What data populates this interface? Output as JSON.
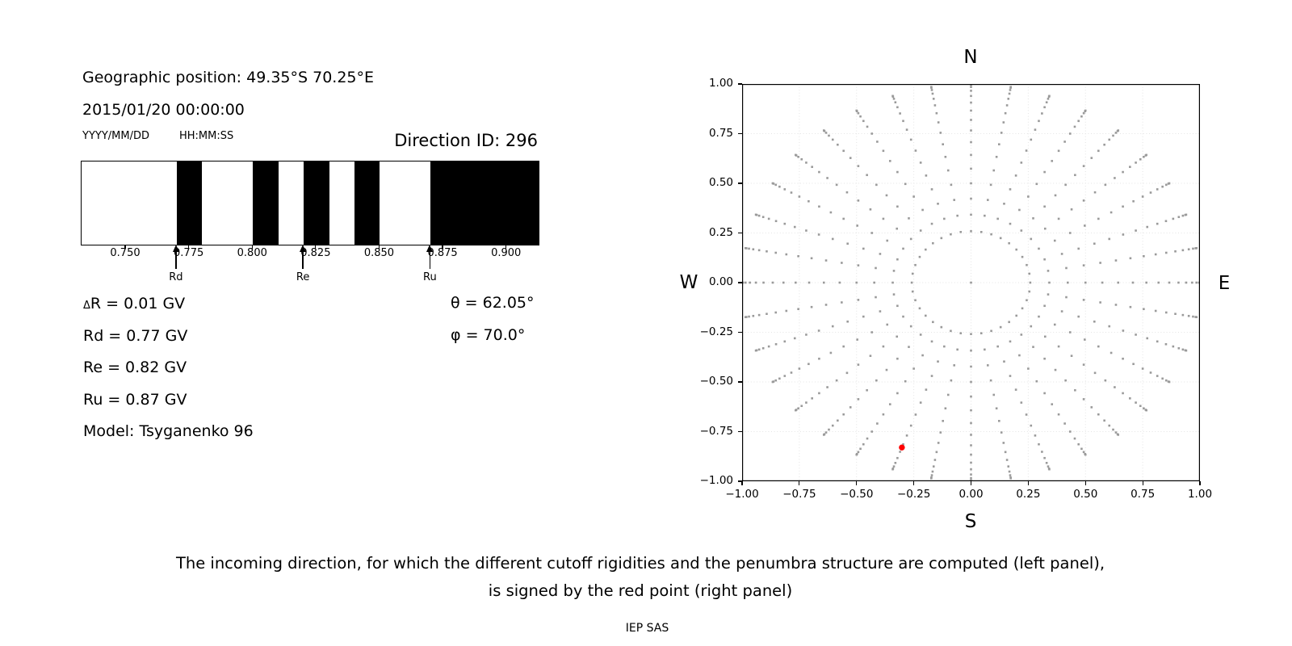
{
  "header": {
    "geo_position": "Geographic position: 49.35°S 70.25°E",
    "datetime": "2015/01/20 00:00:00",
    "date_format": "YYYY/MM/DD",
    "time_format": "HH:MM:SS",
    "direction_id": "Direction ID: 296"
  },
  "left_panel": {
    "rows": [
      "ΔR = 0.01 GV",
      "Rd = 0.77 GV",
      "Re = 0.82 GV",
      "Ru = 0.87 GV",
      "Model: Tsyganenko 96"
    ],
    "angles": [
      "θ = 62.05°",
      "φ = 70.0°"
    ]
  },
  "chart_data": [
    {
      "type": "bar",
      "name": "penumbra-structure",
      "description": "Cutoff rigidity penumbra barcode; black bands = allowed rigidity windows, white = forbidden",
      "x_range": [
        0.7325,
        0.9125
      ],
      "x_ticks": [
        0.75,
        0.775,
        0.8,
        0.825,
        0.85,
        0.875,
        0.9
      ],
      "x_tick_labels": [
        "0.750",
        "0.775",
        "0.800",
        "0.825",
        "0.850",
        "0.875",
        "0.900"
      ],
      "black_bands": [
        [
          0.77,
          0.78
        ],
        [
          0.8,
          0.81
        ],
        [
          0.82,
          0.83
        ],
        [
          0.84,
          0.85
        ],
        [
          0.87,
          0.9125
        ]
      ],
      "arrows": [
        {
          "label": "Rd",
          "x": 0.77
        },
        {
          "label": "Re",
          "x": 0.82
        },
        {
          "label": "Ru",
          "x": 0.87
        }
      ],
      "delta_R_GV": 0.01,
      "Rd_GV": 0.77,
      "Re_GV": 0.82,
      "Ru_GV": 0.87,
      "model": "Tsyganenko 96"
    },
    {
      "type": "scatter",
      "name": "incoming-direction-sky-map",
      "compass_labels": {
        "top": "N",
        "bottom": "S",
        "left": "W",
        "right": "E"
      },
      "xlim": [
        -1,
        1
      ],
      "ylim": [
        -1,
        1
      ],
      "grid": true,
      "x_ticks": [
        -1.0,
        -0.75,
        -0.5,
        -0.25,
        0.0,
        0.25,
        0.5,
        0.75,
        1.0
      ],
      "x_tick_labels": [
        "−1.00",
        "−0.75",
        "−0.50",
        "−0.25",
        "0.00",
        "0.25",
        "0.50",
        "0.75",
        "1.00"
      ],
      "y_ticks": [
        -1.0,
        -0.75,
        -0.5,
        -0.25,
        0.0,
        0.25,
        0.5,
        0.75,
        1.0
      ],
      "y_tick_labels": [
        "−1.00",
        "−0.75",
        "−0.50",
        "−0.25",
        "0.00",
        "0.25",
        "0.50",
        "0.75",
        "1.00"
      ],
      "direction_grid": {
        "azimuth_start_deg": 0,
        "azimuth_step_deg": 10,
        "azimuth_count": 36,
        "zenith_start_deg": 15,
        "zenith_end_deg": 90,
        "zenith_step_deg": 5,
        "radius_mapping": "r = sin(zenith)",
        "center_point": [
          0,
          0
        ],
        "marker": "square",
        "marker_size_px": 2.6,
        "marker_color": "#9a9a9a"
      },
      "red_point": {
        "x": -0.302,
        "y": -0.83,
        "zenith_deg": 62.05,
        "azimuth_deg": 70.0,
        "color": "#ff0000",
        "radius_px": 3.7
      },
      "grid_color": "#e4e4e4"
    }
  ],
  "caption": {
    "line1": "The incoming direction, for which the different cutoff rigidities and the penumbra structure are computed (left panel),",
    "line2": "is signed by the red point (right panel)"
  },
  "credit": "IEP SAS"
}
